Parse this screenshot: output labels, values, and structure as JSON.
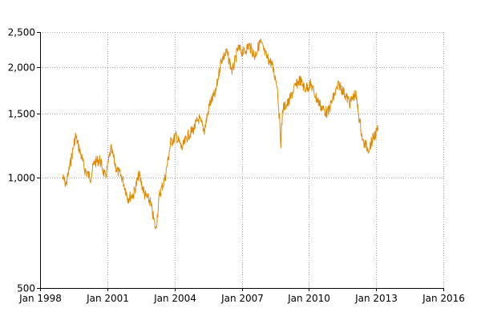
{
  "chart_data": {
    "type": "line",
    "title": "",
    "xlabel": "",
    "ylabel": "",
    "y_scale": "log",
    "ylim": [
      500,
      2500
    ],
    "xlim": [
      "1998-01-01",
      "2016-01-01"
    ],
    "grid": true,
    "x_ticks": [
      {
        "value": "1998-01-01",
        "label": "Jan 1998"
      },
      {
        "value": "2001-01-01",
        "label": "Jan 2001"
      },
      {
        "value": "2004-01-01",
        "label": "Jan 2004"
      },
      {
        "value": "2007-01-01",
        "label": "Jan 2007"
      },
      {
        "value": "2010-01-01",
        "label": "Jan 2010"
      },
      {
        "value": "2013-01-01",
        "label": "Jan 2013"
      },
      {
        "value": "2016-01-01",
        "label": "Jan 2016"
      }
    ],
    "y_ticks": [
      {
        "value": 500,
        "label": "500"
      },
      {
        "value": 1000,
        "label": "1,000"
      },
      {
        "value": 1500,
        "label": "1,500"
      },
      {
        "value": 2000,
        "label": "2,000"
      },
      {
        "value": 2500,
        "label": "2,500"
      }
    ],
    "series": [
      {
        "color": "#e08a00",
        "x": [
          "1999-01",
          "1999-03",
          "1999-06",
          "1999-08",
          "1999-10",
          "2000-01",
          "2000-04",
          "2000-06",
          "2000-09",
          "2000-12",
          "2001-03",
          "2001-06",
          "2001-09",
          "2001-12",
          "2002-03",
          "2002-06",
          "2002-09",
          "2002-12",
          "2003-03",
          "2003-05",
          "2003-08",
          "2003-11",
          "2004-02",
          "2004-05",
          "2004-08",
          "2004-11",
          "2005-02",
          "2005-05",
          "2005-08",
          "2005-11",
          "2006-02",
          "2006-05",
          "2006-08",
          "2006-11",
          "2007-02",
          "2007-05",
          "2007-08",
          "2007-11",
          "2008-02",
          "2008-05",
          "2008-08",
          "2008-10",
          "2008-11",
          "2009-02",
          "2009-05",
          "2009-08",
          "2009-11",
          "2010-02",
          "2010-05",
          "2010-08",
          "2010-11",
          "2011-02",
          "2011-05",
          "2011-08",
          "2011-11",
          "2012-02",
          "2012-04",
          "2012-06",
          "2012-09",
          "2012-12",
          "2013-02"
        ],
        "y": [
          1000,
          960,
          1150,
          1300,
          1200,
          1050,
          1000,
          1100,
          1120,
          1000,
          1200,
          1050,
          1000,
          880,
          900,
          1020,
          900,
          860,
          720,
          900,
          1000,
          1250,
          1300,
          1200,
          1300,
          1350,
          1450,
          1350,
          1600,
          1700,
          2100,
          2200,
          1950,
          2250,
          2200,
          2300,
          2150,
          2350,
          2150,
          2050,
          1800,
          1250,
          1550,
          1600,
          1750,
          1850,
          1750,
          1800,
          1650,
          1550,
          1500,
          1650,
          1800,
          1700,
          1600,
          1700,
          1450,
          1250,
          1200,
          1300,
          1350
        ]
      }
    ]
  }
}
